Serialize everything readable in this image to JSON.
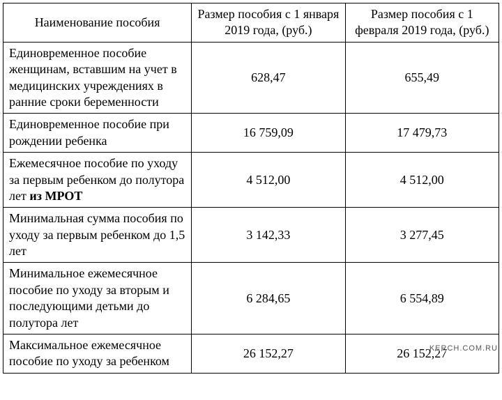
{
  "table": {
    "columns": [
      "Наименование пособия",
      "Размер пособия с 1 января 2019 года, (руб.)",
      "Размер пособия с 1 февраля 2019 года, (руб.)"
    ],
    "rows": [
      {
        "name_pre": "Единовременное пособие женщинам, вставшим на учет в медицинских учреждениях в ранние сроки беременности",
        "name_bold": "",
        "val1": "628,47",
        "val2": "655,49"
      },
      {
        "name_pre": "Единовременное пособие при рождении ребенка",
        "name_bold": "",
        "val1": "16 759,09",
        "val2": "17 479,73"
      },
      {
        "name_pre": "Ежемесячное пособие по уходу за первым ребенком до полутора лет ",
        "name_bold": "из МРОТ",
        "val1": "4 512,00",
        "val2": "4 512,00"
      },
      {
        "name_pre": "Минимальная сумма пособия по уходу за первым ребенком до 1,5 лет",
        "name_bold": "",
        "val1": "3 142,33",
        "val2": "3 277,45"
      },
      {
        "name_pre": "Минимальное ежемесячное пособие по уходу за вторым и последующими детьми до полутора лет",
        "name_bold": "",
        "val1": "6 284,65",
        "val2": "6 554,89"
      },
      {
        "name_pre": "Максимальное ежемесячное пособие по уходу за ребенком",
        "name_bold": "",
        "val1": "26 152,27",
        "val2": "26 152,27"
      }
    ],
    "border_color": "#000000",
    "background_color": "#ffffff",
    "text_color": "#000000",
    "font_family": "Times New Roman",
    "font_size": 18
  },
  "watermark": "KERCH.COM.RU"
}
